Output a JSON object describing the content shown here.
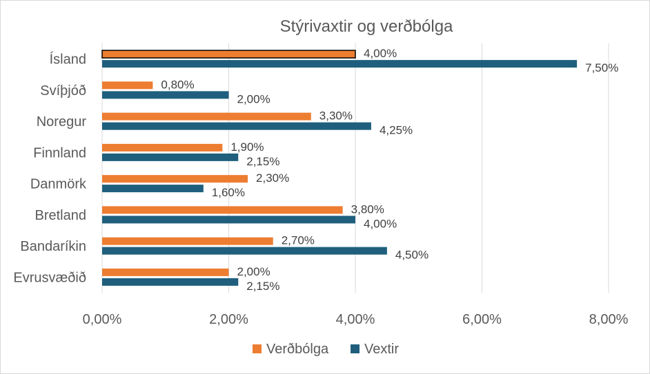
{
  "chart_data": {
    "type": "bar",
    "orientation": "horizontal",
    "title": "Stýrivaxtir og verðbólga",
    "categories": [
      "Ísland",
      "Svíþjóð",
      "Noregur",
      "Finnland",
      "Danmörk",
      "Bretland",
      "Bandaríkin",
      "Evrusvæðið"
    ],
    "series": [
      {
        "name": "Verðbólga",
        "color": "#ED7D31",
        "values": [
          4.0,
          0.8,
          3.3,
          1.9,
          2.3,
          3.8,
          2.7,
          2.0
        ],
        "labels": [
          "4,00%",
          "0,80%",
          "3,30%",
          "1,90%",
          "2,30%",
          "3,80%",
          "2,70%",
          "2,00%"
        ]
      },
      {
        "name": "Vextir",
        "color": "#1F5F7D",
        "values": [
          7.5,
          2.0,
          4.25,
          2.15,
          1.6,
          4.0,
          4.5,
          2.15
        ],
        "labels": [
          "7,50%",
          "2,00%",
          "4,25%",
          "2,15%",
          "1,60%",
          "4,00%",
          "4,50%",
          "2,15%"
        ]
      }
    ],
    "xlim": [
      0,
      8
    ],
    "xticks": [
      0,
      2,
      4,
      6,
      8
    ],
    "xtick_labels": [
      "0,00%",
      "2,00%",
      "4,00%",
      "6,00%",
      "8,00%"
    ],
    "grid": true,
    "legend": "bottom",
    "highlight": {
      "category": "Ísland",
      "series": "Verðbólga",
      "outline": "#000000"
    }
  }
}
